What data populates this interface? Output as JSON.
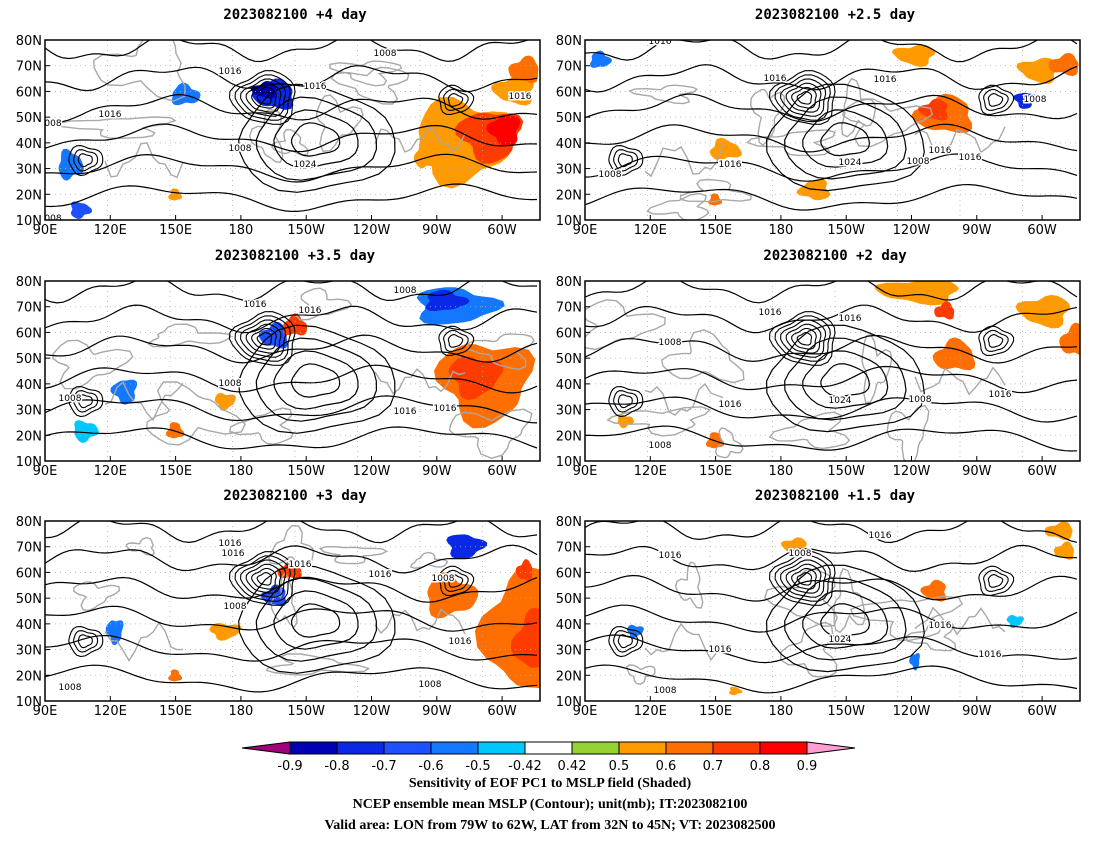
{
  "panels": [
    {
      "title": "2023082100 +4 day",
      "contours": [
        "1008",
        "1016",
        "1016",
        "1016",
        "1008",
        "1024",
        "008",
        "1016",
        "008"
      ]
    },
    {
      "title": "2023082100 +2.5 day",
      "contours": [
        "1016",
        "1016",
        "1016",
        "1008",
        "1016",
        "1024",
        "1008",
        "1016",
        "1016",
        "1008"
      ]
    },
    {
      "title": "2023082100 +3.5 day",
      "contours": [
        "1008",
        "1016",
        "1016",
        "1008",
        "1008",
        "1016",
        "1016"
      ]
    },
    {
      "title": "2023082100 +2 day",
      "contours": [
        "1016",
        "1016",
        "1008",
        "1016",
        "1024",
        "1008",
        "1016",
        "1008"
      ]
    },
    {
      "title": "2023082100 +3 day",
      "contours": [
        "1016",
        "1016",
        "1016",
        "1016",
        "1008",
        "1008",
        "1016",
        "1008",
        "1008"
      ]
    },
    {
      "title": "2023082100 +1.5 day",
      "contours": [
        "1016",
        "1008",
        "1016",
        "1016",
        "1024",
        "1016",
        "1016",
        "1008"
      ]
    }
  ],
  "lat_labels": [
    "80N",
    "70N",
    "60N",
    "50N",
    "40N",
    "30N",
    "20N",
    "10N"
  ],
  "lon_labels": [
    "90E",
    "120E",
    "150E",
    "180",
    "150W",
    "120W",
    "90W",
    "60W"
  ],
  "colorbar": {
    "labels": [
      "-0.9",
      "-0.8",
      "-0.7",
      "-0.6",
      "-0.5",
      "-0.42",
      "0.42",
      "0.5",
      "0.6",
      "0.7",
      "0.8",
      "0.9"
    ],
    "colors": [
      "#0000b4",
      "#0a28e6",
      "#1e50ff",
      "#1478ff",
      "#00c8ff",
      "#ffffff",
      "#96d232",
      "#ff9b00",
      "#ff6e00",
      "#ff3c00",
      "#ff0000"
    ],
    "low_color": "#a0007a",
    "high_color": "#ff9ed2"
  },
  "footer": {
    "line1": "Sensitivity of EOF PC1 to MSLP field (Shaded)",
    "line2": "NCEP ensemble mean MSLP (Contour); unit(mb); IT:2023082100",
    "line3": "Valid area: LON from 79W to 62W, LAT from 32N to 45N; VT: 2023082500"
  }
}
